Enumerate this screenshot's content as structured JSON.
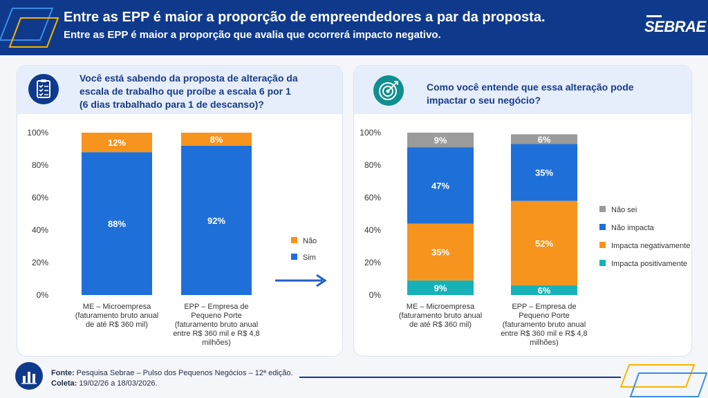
{
  "header": {
    "title": "Entre as EPP é maior a proporção de empreendedores a par da proposta.",
    "subtitle": "Entre as EPP é maior a proporção que avalia que ocorrerá impacto negativo.",
    "logo": "SEBRAE"
  },
  "left_panel": {
    "question": [
      "Você está sabendo da proposta de alteração da",
      "escala de trabalho que proíbe a escala 6 por 1",
      "(6 dias trabalhado para 1 de descanso)?"
    ],
    "icon": "clipboard-checklist-icon"
  },
  "right_panel": {
    "question": [
      "Como você entende que essa alteração pode",
      "impactar o seu negócio?"
    ],
    "icon": "target-arrow-icon"
  },
  "footer": {
    "source_label": "Fonte:",
    "source": " Pesquisa Sebrae – Pulso dos Pequenos Negócios – 12ª edição.",
    "period_label": "Coleta:",
    "period": " 19/02/26 a 18/03/2026.",
    "icon": "bar-chart-icon"
  },
  "colors": {
    "navy": "#0f3a8c",
    "blue": "#1f6fd8",
    "orange": "#f7941d",
    "gray": "#9b9b9b",
    "teal": "#17b2b8",
    "accent_yellow": "#f5b400"
  },
  "chart_data": [
    {
      "type": "bar",
      "stacked": true,
      "categories": [
        [
          "ME – Microempresa",
          "(faturamento bruto anual",
          "de até R$ 360 mil)"
        ],
        [
          "EPP – Empresa de",
          "Pequeno Porte",
          "(faturamento bruto anual",
          "entre R$ 360 mil e R$ 4,8",
          "milhões)"
        ]
      ],
      "series": [
        {
          "name": "Sim",
          "values": [
            88,
            92
          ],
          "color": "#1f6fd8"
        },
        {
          "name": "Não",
          "values": [
            12,
            8
          ],
          "color": "#f7941d"
        }
      ],
      "ylim": [
        0,
        100
      ],
      "yticks": [
        "0%",
        "20%",
        "40%",
        "60%",
        "80%",
        "100%"
      ],
      "legend_position": "right",
      "legend": [
        {
          "name": "Não",
          "color": "#f7941d"
        },
        {
          "name": "Sim",
          "color": "#1f6fd8"
        }
      ]
    },
    {
      "type": "bar",
      "stacked": true,
      "categories": [
        [
          "ME – Microempresa",
          "(faturamento bruto anual",
          "de até R$ 360 mil)"
        ],
        [
          "EPP – Empresa de",
          "Pequeno Porte",
          "(faturamento bruto anual",
          "entre R$ 360 mil e R$ 4,8",
          "milhões)"
        ]
      ],
      "series": [
        {
          "name": "Impacta positivamente",
          "values": [
            9,
            6
          ],
          "color": "#17b2b8"
        },
        {
          "name": "Impacta negativamente",
          "values": [
            35,
            52
          ],
          "color": "#f7941d"
        },
        {
          "name": "Não impacta",
          "values": [
            47,
            35
          ],
          "color": "#1f6fd8"
        },
        {
          "name": "Não sei",
          "values": [
            9,
            6
          ],
          "color": "#9b9b9b"
        }
      ],
      "ylim": [
        0,
        100
      ],
      "yticks": [
        "0%",
        "20%",
        "40%",
        "60%",
        "80%",
        "100%"
      ],
      "legend_position": "right",
      "legend": [
        {
          "name": "Não sei",
          "color": "#9b9b9b"
        },
        {
          "name": "Não impacta",
          "color": "#1f6fd8"
        },
        {
          "name": "Impacta negativamente",
          "color": "#f7941d"
        },
        {
          "name": "Impacta positivamente",
          "color": "#17b2b8"
        }
      ]
    }
  ]
}
